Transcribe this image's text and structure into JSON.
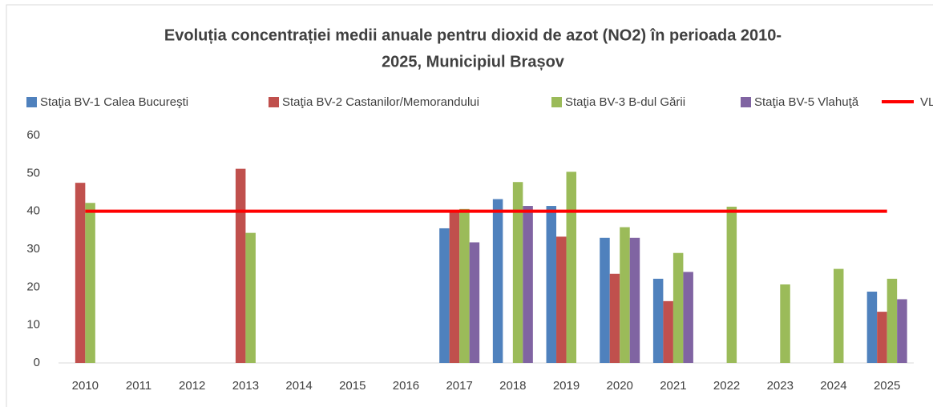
{
  "chart_data": {
    "type": "bar",
    "title": [
      "Evoluția concentrației medii anuale pentru dioxid de azot (NO2) în perioada 2010-",
      "2025, Municipiul Brașov"
    ],
    "categories": [
      "2010",
      "2011",
      "2012",
      "2013",
      "2014",
      "2015",
      "2016",
      "2017",
      "2018",
      "2019",
      "2020",
      "2021",
      "2022",
      "2023",
      "2024",
      "2025"
    ],
    "series": [
      {
        "name": "Staţia BV-1 Calea Bucureşti",
        "color": "#4f81bd",
        "values": [
          null,
          null,
          null,
          null,
          null,
          null,
          null,
          35.5,
          43.2,
          41.4,
          33.0,
          22.2,
          null,
          null,
          null,
          18.8
        ]
      },
      {
        "name": "Staţia BV-2 Castanilor/Memorandului",
        "color": "#c0504d",
        "values": [
          47.5,
          null,
          null,
          51.2,
          null,
          null,
          null,
          40.2,
          null,
          33.3,
          23.5,
          16.3,
          null,
          null,
          null,
          13.5
        ]
      },
      {
        "name": "Staţia BV-3 B-dul Gării",
        "color": "#9bbb59",
        "values": [
          42.2,
          null,
          null,
          34.3,
          null,
          null,
          null,
          40.6,
          47.7,
          50.4,
          35.8,
          29.0,
          41.2,
          20.7,
          24.8,
          22.2
        ]
      },
      {
        "name": "Staţia BV-5 Vlahuţă",
        "color": "#8064a2",
        "values": [
          null,
          null,
          null,
          null,
          null,
          null,
          null,
          31.8,
          41.4,
          null,
          33.0,
          24.0,
          null,
          null,
          null,
          16.8
        ]
      },
      {
        "name": "VL",
        "color": "#ff0000",
        "type": "line",
        "values": [
          40,
          40,
          40,
          40,
          40,
          40,
          40,
          40,
          40,
          40,
          40,
          40,
          40,
          40,
          40,
          40
        ]
      }
    ],
    "ylim": [
      0,
      60
    ],
    "yticks": [
      0,
      10,
      20,
      30,
      40,
      50,
      60
    ],
    "grid": false,
    "legend": "top"
  }
}
